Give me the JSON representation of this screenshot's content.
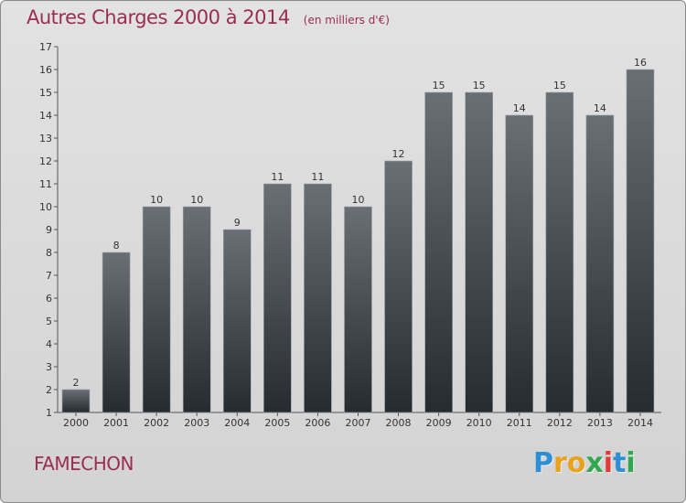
{
  "header": {
    "title": "Autres Charges 2000 à 2014",
    "subtitle": "(en milliers d'€)"
  },
  "footer": {
    "commune": "FAMECHON",
    "logo_letters": [
      "P",
      "r",
      "o",
      "x",
      "i",
      "t",
      "i"
    ],
    "logo_colors": [
      "#2e8fd6",
      "#e8a21c",
      "#e8a21c",
      "#2fa84f",
      "#e23a3a",
      "#2e8fd6",
      "#2fa84f"
    ]
  },
  "colors": {
    "accent": "#9b2d52",
    "bar_top": "#6a6f75",
    "bar_bottom": "#262b31"
  },
  "chart_data": {
    "type": "bar",
    "categories": [
      "2000",
      "2001",
      "2002",
      "2003",
      "2004",
      "2005",
      "2006",
      "2007",
      "2008",
      "2009",
      "2010",
      "2011",
      "2012",
      "2013",
      "2014"
    ],
    "values": [
      2,
      8,
      10,
      10,
      9,
      11,
      11,
      10,
      12,
      15,
      15,
      14,
      15,
      14,
      16
    ],
    "title": "Autres Charges 2000 à 2014",
    "subtitle": "(en milliers d'€)",
    "xlabel": "",
    "ylabel": "",
    "ylim": [
      1,
      17
    ],
    "yticks": [
      1,
      2,
      3,
      4,
      5,
      6,
      7,
      8,
      9,
      10,
      11,
      12,
      13,
      14,
      15,
      16,
      17
    ],
    "grid": false,
    "legend": "none"
  }
}
